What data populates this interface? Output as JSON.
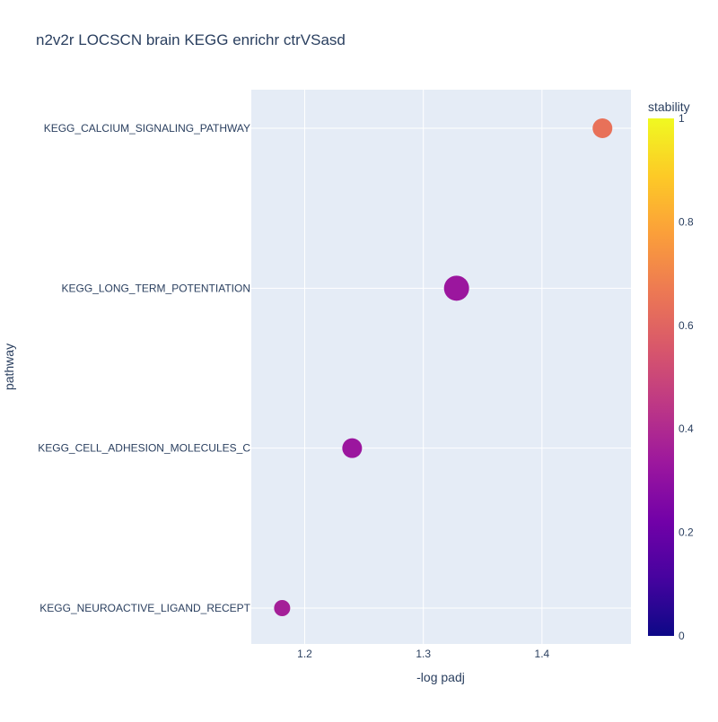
{
  "chart_data": {
    "type": "scatter",
    "title": "n2v2r LOCSCN brain KEGG enrichr ctrVSasd",
    "xlabel": "-log padj",
    "ylabel": "pathway",
    "xlim": [
      1.155,
      1.475
    ],
    "x_ticks": [
      1.2,
      1.3,
      1.4
    ],
    "x_tick_labels": [
      "1.2",
      "1.3",
      "1.4"
    ],
    "categories": [
      "KEGG_NEUROACTIVE_LIGAND_RECEPT",
      "KEGG_CELL_ADHESION_MOLECULES_C",
      "KEGG_LONG_TERM_POTENTIATION",
      "KEGG_CALCIUM_SIGNALING_PATHWAY"
    ],
    "points": [
      {
        "category": "KEGG_CALCIUM_SIGNALING_PATHWAY",
        "x": 1.451,
        "stability": 0.64,
        "size": "medium"
      },
      {
        "category": "KEGG_LONG_TERM_POTENTIATION",
        "x": 1.328,
        "stability": 0.33,
        "size": "large"
      },
      {
        "category": "KEGG_CELL_ADHESION_MOLECULES_C",
        "x": 1.24,
        "stability": 0.33,
        "size": "medium"
      },
      {
        "category": "KEGG_NEUROACTIVE_LIGAND_RECEPT",
        "x": 1.181,
        "stability": 0.36,
        "size": "small"
      }
    ],
    "colorbar": {
      "title": "stability",
      "range": [
        0,
        1
      ],
      "ticks": [
        0,
        0.2,
        0.4,
        0.6,
        0.8,
        1
      ],
      "tick_labels": [
        "0",
        "0.2",
        "0.4",
        "0.6",
        "0.8",
        "1"
      ],
      "colorscale": [
        "#0d0887",
        "#46039f",
        "#7201a8",
        "#9c179e",
        "#bd3786",
        "#d8576b",
        "#ed7953",
        "#fb9f3a",
        "#fdca26",
        "#f0f921"
      ]
    },
    "grid": true,
    "plot_bgcolor": "#e5ecf6"
  }
}
